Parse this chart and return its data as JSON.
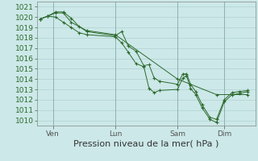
{
  "background_color": "#cce8e8",
  "grid_color": "#aacccc",
  "line_color": "#2d6a2d",
  "marker_color": "#2d6a2d",
  "ylabel_values": [
    1010,
    1011,
    1012,
    1013,
    1014,
    1015,
    1016,
    1017,
    1018,
    1019,
    1020,
    1021
  ],
  "ylim": [
    1009.5,
    1021.5
  ],
  "xlabel": "Pression niveau de la mer( hPa )",
  "xtick_labels": [
    "Ven",
    "Lun",
    "Sam",
    "Dim"
  ],
  "xtick_positions": [
    12,
    60,
    108,
    144
  ],
  "xlim": [
    0,
    168
  ],
  "vline_positions": [
    12,
    60,
    108,
    144
  ],
  "series1_x": [
    2,
    8,
    14,
    20,
    26,
    32,
    38,
    60,
    65,
    70,
    76,
    82,
    86,
    90,
    94,
    108,
    112,
    115,
    118,
    122,
    127,
    133,
    138,
    144,
    150,
    156,
    162
  ],
  "series1_y": [
    1019.8,
    1020.1,
    1020.0,
    1019.5,
    1019.0,
    1018.5,
    1018.3,
    1018.1,
    1017.5,
    1016.6,
    1015.5,
    1015.2,
    1013.1,
    1012.7,
    1012.9,
    1013.0,
    1014.1,
    1014.3,
    1013.1,
    1012.5,
    1011.2,
    1010.1,
    1009.8,
    1011.8,
    1012.5,
    1012.6,
    1012.8
  ],
  "series2_x": [
    2,
    8,
    14,
    20,
    26,
    32,
    38,
    60,
    65,
    70,
    76,
    82,
    86,
    90,
    94,
    108,
    112,
    115,
    118,
    122,
    127,
    133,
    138,
    144,
    150,
    156,
    162
  ],
  "series2_y": [
    1019.8,
    1020.1,
    1020.5,
    1020.5,
    1019.9,
    1019.1,
    1018.6,
    1018.2,
    1018.6,
    1017.2,
    1016.7,
    1015.3,
    1015.4,
    1014.1,
    1013.8,
    1013.5,
    1014.5,
    1014.5,
    1013.5,
    1012.8,
    1011.5,
    1010.3,
    1010.1,
    1012.0,
    1012.7,
    1012.8,
    1012.9
  ],
  "series3_x": [
    2,
    8,
    14,
    20,
    26,
    38,
    60,
    108,
    138,
    162
  ],
  "series3_y": [
    1019.8,
    1020.1,
    1020.4,
    1020.4,
    1019.5,
    1018.7,
    1018.3,
    1014.0,
    1012.5,
    1012.5
  ],
  "tick_fontsize": 6.5,
  "xlabel_fontsize": 8
}
